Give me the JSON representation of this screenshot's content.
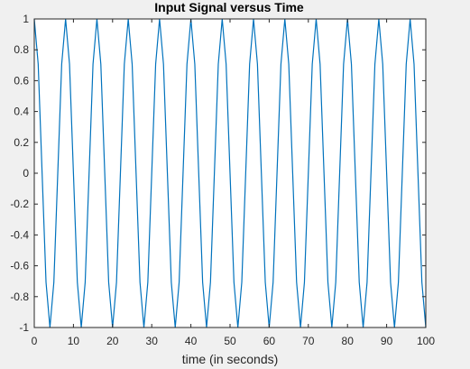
{
  "chart_data": {
    "type": "line",
    "title": "Input Signal versus Time",
    "xlabel": "time (in seconds)",
    "ylabel": "",
    "xlim": [
      0,
      100
    ],
    "ylim": [
      -1,
      1
    ],
    "x_ticks": [
      "0",
      "10",
      "20",
      "30",
      "40",
      "50",
      "60",
      "70",
      "80",
      "90",
      "100"
    ],
    "y_ticks": [
      "-1",
      "-0.8",
      "-0.6",
      "-0.4",
      "-0.2",
      "0",
      "0.2",
      "0.4",
      "0.6",
      "0.8",
      "1"
    ],
    "grid": false,
    "line_color": "#0072bd",
    "series": [
      {
        "x": [
          0,
          1,
          2,
          3,
          4,
          5,
          6,
          7,
          8,
          9,
          10,
          11,
          12,
          13,
          14,
          15,
          16,
          17,
          18,
          19,
          20,
          21,
          22,
          23,
          24,
          25,
          26,
          27,
          28,
          29,
          30,
          31,
          32,
          33,
          34,
          35,
          36,
          37,
          38,
          39,
          40,
          41,
          42,
          43,
          44,
          45,
          46,
          47,
          48,
          49,
          50,
          51,
          52,
          53,
          54,
          55,
          56,
          57,
          58,
          59,
          60,
          61,
          62,
          63,
          64,
          65,
          66,
          67,
          68,
          69,
          70,
          71,
          72,
          73,
          74,
          75,
          76,
          77,
          78,
          79,
          80,
          81,
          82,
          83,
          84,
          85,
          86,
          87,
          88,
          89,
          90,
          91,
          92,
          93,
          94,
          95,
          96,
          97,
          98,
          99,
          100
        ],
        "y": [
          1,
          0.707,
          0,
          -0.707,
          -1,
          -0.707,
          0,
          0.707,
          1,
          0.707,
          0,
          -0.707,
          -1,
          -0.707,
          0,
          0.707,
          1,
          0.707,
          0,
          -0.707,
          -1,
          -0.707,
          0,
          0.707,
          1,
          0.707,
          0,
          -0.707,
          -1,
          -0.707,
          0,
          0.707,
          1,
          0.707,
          0,
          -0.707,
          -1,
          -0.707,
          0,
          0.707,
          1,
          0.707,
          0,
          -0.707,
          -1,
          -0.707,
          0,
          0.707,
          1,
          0.707,
          0,
          -0.707,
          -1,
          -0.707,
          0,
          0.707,
          1,
          0.707,
          0,
          -0.707,
          -1,
          -0.707,
          0,
          0.707,
          1,
          0.707,
          0,
          -0.707,
          -1,
          -0.707,
          0,
          0.707,
          1,
          0.707,
          0,
          -0.707,
          -1,
          -0.707,
          0,
          0.707,
          1,
          0.707,
          0,
          -0.707,
          -1,
          -0.707,
          0,
          0.707,
          1,
          0.707,
          0,
          -0.707,
          -1,
          -0.707,
          0,
          0.707,
          1,
          0.707,
          0,
          -0.707,
          -1
        ]
      }
    ]
  }
}
